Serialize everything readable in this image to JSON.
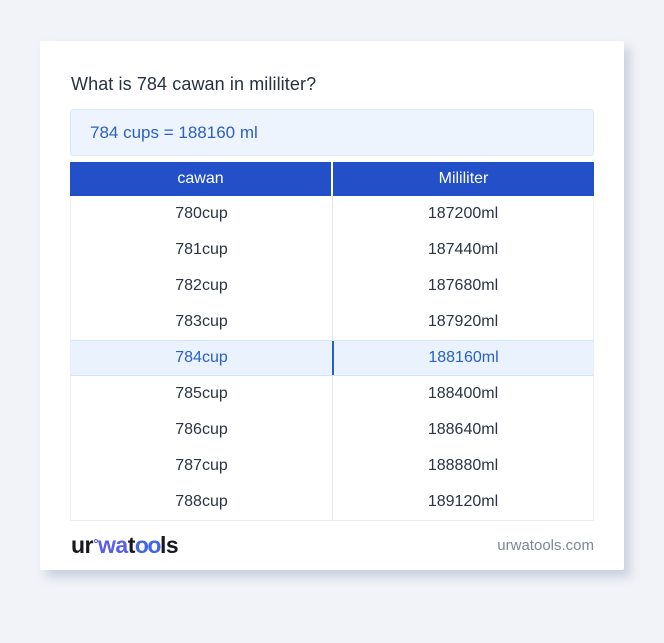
{
  "title": "What is 784 cawan in mililiter?",
  "answer": {
    "text": "784 cups = 188160 ml"
  },
  "table": {
    "headers": [
      "cawan",
      "Mililiter"
    ],
    "highlighted_row_index": 4,
    "rows": [
      [
        "780cup",
        "187200ml"
      ],
      [
        "781cup",
        "187440ml"
      ],
      [
        "782cup",
        "187680ml"
      ],
      [
        "783cup",
        "187920ml"
      ],
      [
        "784cup",
        "188160ml"
      ],
      [
        "785cup",
        "188400ml"
      ],
      [
        "786cup",
        "188640ml"
      ],
      [
        "787cup",
        "188880ml"
      ],
      [
        "788cup",
        "189120ml"
      ]
    ]
  },
  "footer": {
    "logo": {
      "part_ur": "ur",
      "ring_icon": "small-circle",
      "part_wa": "wa",
      "part_t": "t",
      "part_oo": "oo",
      "part_ls": "ls"
    },
    "domain": "urwatools.com"
  },
  "colors": {
    "header_bg": "#2350c9",
    "accent_blue": "#2a61c3",
    "answer_bg": "#edf4fd",
    "highlight_bg": "#e9f2fd",
    "highlight_divider": "#2a5fc2",
    "page_bg": "#f1f3f8",
    "logo_blue_wa": "#5a5fe8",
    "logo_blue_oo": "#3f66ee",
    "domain_text": "#7e8798"
  }
}
